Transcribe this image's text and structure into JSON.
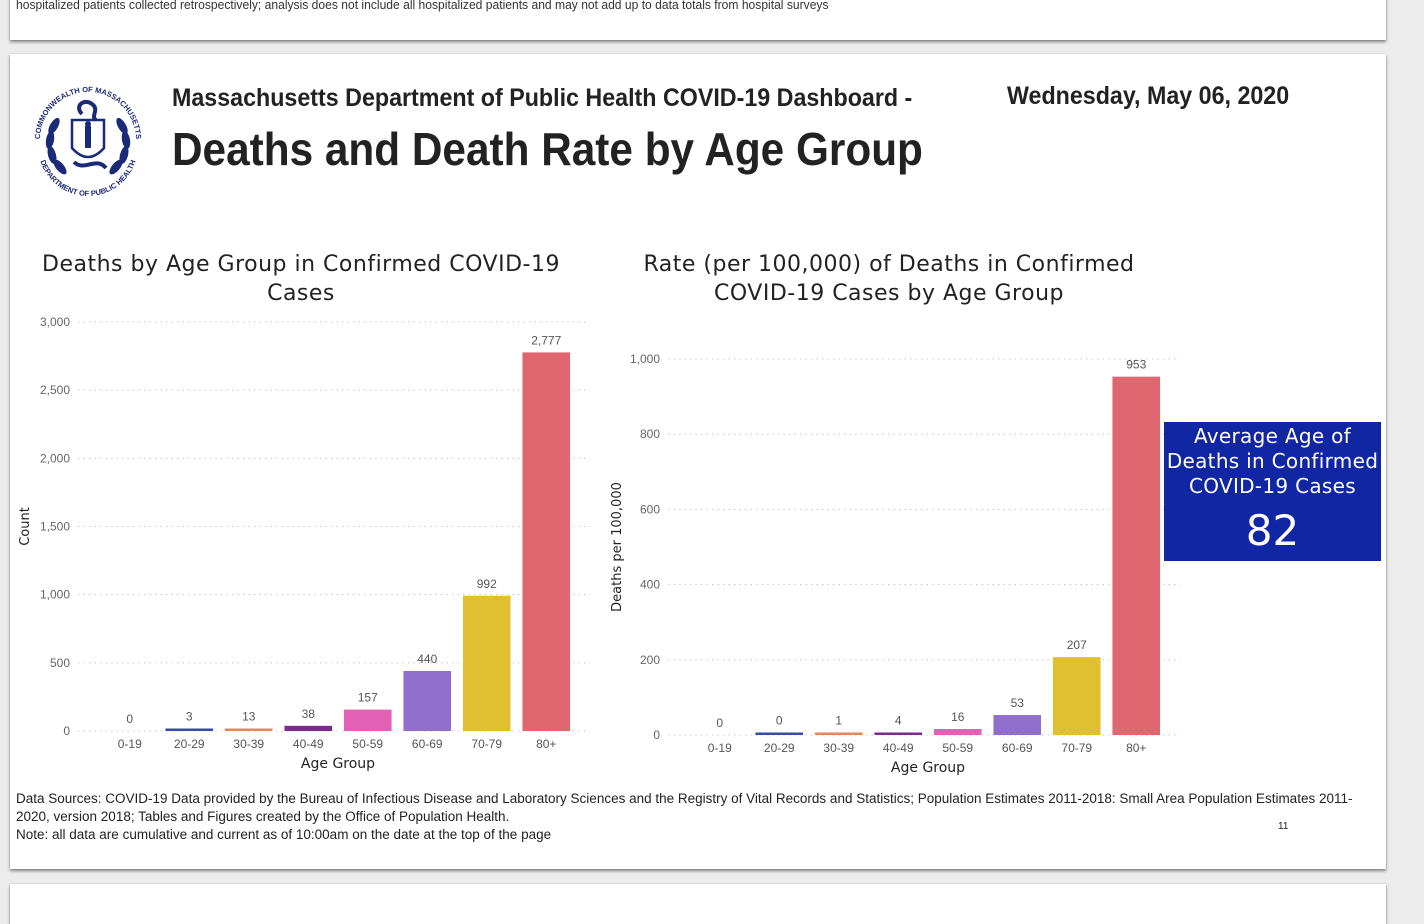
{
  "previous_page": {
    "text": "hospitalized patients collected retrospectively; analysis does not include all hospitalized patients and may not add up to data totals from hospital surveys"
  },
  "header": {
    "logo": {
      "icon": "massachusetts-dph-seal-icon",
      "ring_text_top": "COMMONWEALTH OF MASSACHUSETTS",
      "ring_text_bottom": "DEPARTMENT OF PUBLIC HEALTH"
    },
    "dashboard_title": "Massachusetts Department of Public Health COVID-19 Dashboard -",
    "date": "Wednesday, May 06, 2020",
    "page_title": "Deaths and Death Rate by Age Group"
  },
  "colors": {
    "kpi_background": "#1126a3",
    "bars": [
      "#2c3a8c",
      "#3a4aa8",
      "#e8845a",
      "#7b2a8c",
      "#e261b5",
      "#8f6fcb",
      "#e0c030",
      "#e06670"
    ]
  },
  "chart_data": [
    {
      "type": "bar",
      "title": "Deaths by Age Group in Confirmed COVID-19 Cases",
      "xlabel": "Age Group",
      "ylabel": "Count",
      "categories": [
        "0-19",
        "20-29",
        "30-39",
        "40-49",
        "50-59",
        "60-69",
        "70-79",
        "80+"
      ],
      "values": [
        0,
        3,
        13,
        38,
        157,
        440,
        992,
        2777
      ],
      "data_labels": [
        "0",
        "3",
        "13",
        "38",
        "157",
        "440",
        "992",
        "2,777"
      ],
      "ylim": [
        0,
        3000
      ],
      "yticks": [
        0,
        500,
        1000,
        1500,
        2000,
        2500,
        3000
      ],
      "ytick_labels": [
        "0",
        "500",
        "1,000",
        "1,500",
        "2,000",
        "2,500",
        "3,000"
      ],
      "grid": true,
      "legend": "none"
    },
    {
      "type": "bar",
      "title": "Rate (per 100,000) of Deaths in Confirmed COVID-19 Cases by Age Group",
      "xlabel": "Age Group",
      "ylabel": "Deaths per 100,000",
      "categories": [
        "0-19",
        "20-29",
        "30-39",
        "40-49",
        "50-59",
        "60-69",
        "70-79",
        "80+"
      ],
      "values": [
        0,
        0,
        1,
        4,
        16,
        53,
        207,
        953
      ],
      "data_labels": [
        "0",
        "0",
        "1",
        "4",
        "16",
        "53",
        "207",
        "953"
      ],
      "ylim": [
        0,
        1000
      ],
      "yticks": [
        0,
        200,
        400,
        600,
        800,
        1000
      ],
      "ytick_labels": [
        "0",
        "200",
        "400",
        "600",
        "800",
        "1,000"
      ],
      "grid": true,
      "legend": "none"
    }
  ],
  "kpi": {
    "label": "Average Age of Deaths in Confirmed COVID-19 Cases",
    "value": "82"
  },
  "footer": {
    "sources": "Data Sources: COVID-19 Data provided by the Bureau of Infectious Disease and Laboratory Sciences and the Registry of Vital Records and Statistics; Population Estimates 2011-2018: Small Area Population Estimates 2011-2020, version 2018; Tables and Figures created by the Office of Population Health.",
    "note": "Note: all data are cumulative and current as of 10:00am on the date at the top of the page",
    "page_number": "11"
  }
}
